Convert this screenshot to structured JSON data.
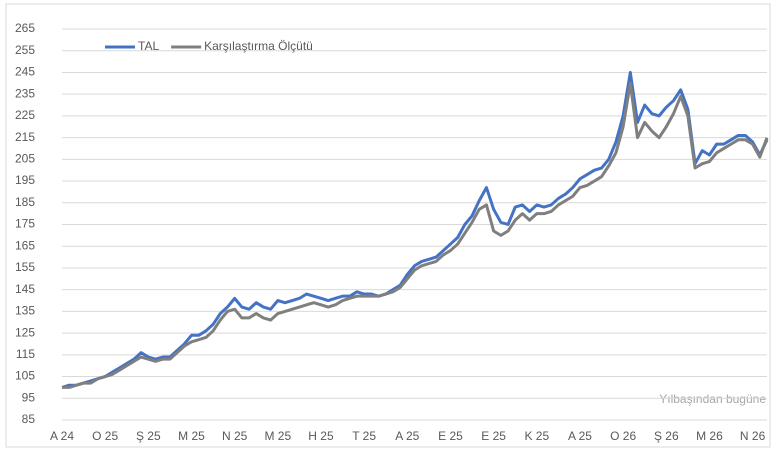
{
  "chart_data": {
    "type": "line",
    "annotation": "Yılbaşından bugüne",
    "categories": [
      "A 24",
      null,
      null,
      null,
      null,
      null,
      "O 25",
      null,
      null,
      null,
      null,
      null,
      "Ş 25",
      null,
      null,
      null,
      null,
      null,
      "M 25",
      null,
      null,
      null,
      null,
      null,
      "N 25",
      null,
      null,
      null,
      null,
      null,
      "M 25",
      null,
      null,
      null,
      null,
      null,
      "H 25",
      null,
      null,
      null,
      null,
      null,
      "T 25",
      null,
      null,
      null,
      null,
      null,
      "A 25",
      null,
      null,
      null,
      null,
      null,
      "E 25",
      null,
      null,
      null,
      null,
      null,
      "E 25",
      null,
      null,
      null,
      null,
      null,
      "K 25",
      null,
      null,
      null,
      null,
      null,
      "A 25",
      null,
      null,
      null,
      null,
      null,
      "O 26",
      null,
      null,
      null,
      null,
      null,
      "Ş 26",
      null,
      null,
      null,
      null,
      null,
      "M 26",
      null,
      null,
      null,
      null,
      null,
      "N 26",
      null,
      null
    ],
    "series": [
      {
        "name": "TAL",
        "color": "#4472c4",
        "values": [
          100,
          101,
          101,
          102,
          103,
          104,
          105,
          107,
          109,
          111,
          113,
          116,
          114,
          113,
          114,
          114,
          117,
          120,
          124,
          124,
          126,
          129,
          134,
          137,
          141,
          137,
          136,
          139,
          137,
          136,
          140,
          139,
          140,
          141,
          143,
          142,
          141,
          140,
          141,
          142,
          142,
          144,
          143,
          143,
          142,
          143,
          145,
          147,
          152,
          156,
          158,
          159,
          160,
          163,
          166,
          169,
          175,
          179,
          186,
          192,
          182,
          176,
          175,
          183,
          184,
          181,
          184,
          183,
          184,
          187,
          189,
          192,
          196,
          198,
          200,
          201,
          205,
          213,
          225,
          245,
          222,
          230,
          226,
          225,
          229,
          232,
          237,
          228,
          203,
          209,
          207,
          212,
          212,
          214,
          216,
          216,
          213,
          207,
          214
        ]
      },
      {
        "name": "Karşılaştırma Ölçütü",
        "color": "#7f7f7f",
        "values": [
          100,
          100,
          101,
          102,
          102,
          104,
          105,
          106,
          108,
          110,
          112,
          114,
          113,
          112,
          113,
          113,
          116,
          119,
          121,
          122,
          123,
          126,
          131,
          135,
          136,
          132,
          132,
          134,
          132,
          131,
          134,
          135,
          136,
          137,
          138,
          139,
          138,
          137,
          138,
          140,
          141,
          142,
          142,
          142,
          142,
          143,
          144,
          146,
          150,
          154,
          156,
          157,
          158,
          161,
          163,
          166,
          171,
          176,
          182,
          184,
          172,
          170,
          172,
          177,
          180,
          177,
          180,
          180,
          181,
          184,
          186,
          188,
          192,
          193,
          195,
          197,
          202,
          208,
          220,
          240,
          215,
          222,
          218,
          215,
          220,
          226,
          234,
          225,
          201,
          203,
          204,
          208,
          210,
          212,
          214,
          214,
          212,
          206,
          215
        ]
      }
    ],
    "ylim": [
      85,
      265
    ],
    "yticks": [
      85,
      95,
      105,
      115,
      125,
      135,
      145,
      155,
      165,
      175,
      185,
      195,
      205,
      215,
      225,
      235,
      245,
      255,
      265
    ],
    "grid": true,
    "legend": "top-left"
  }
}
